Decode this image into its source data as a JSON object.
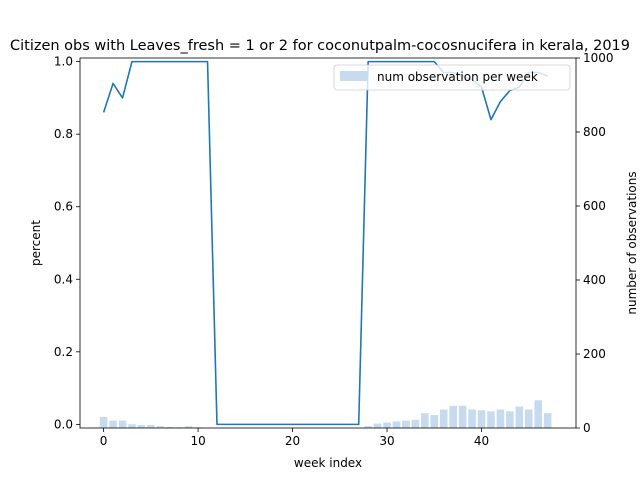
{
  "chart_data": {
    "type": "bar+line",
    "title": "Citizen obs with Leaves_fresh = 1 or 2 for coconutpalm-cocosnucifera in kerala, 2019",
    "xlabel": "week index",
    "ylabel": "percent",
    "y2label": "number of observations",
    "xlim": [
      -2.5,
      50
    ],
    "ylim": [
      -0.01,
      1.01
    ],
    "y2lim": [
      0,
      1000
    ],
    "x_ticks": [
      0,
      10,
      20,
      30,
      40
    ],
    "y_ticks": [
      0.0,
      0.2,
      0.4,
      0.6,
      0.8,
      1.0
    ],
    "y2_ticks": [
      0,
      200,
      400,
      600,
      800,
      1000
    ],
    "legend": {
      "label": "num observation per week",
      "placement": "top-right"
    },
    "bars": {
      "name": "num observation per week",
      "x": [
        0,
        1,
        2,
        3,
        4,
        5,
        6,
        7,
        8,
        9,
        10,
        11,
        12,
        13,
        14,
        15,
        16,
        17,
        18,
        19,
        20,
        21,
        22,
        23,
        24,
        25,
        26,
        27,
        28,
        29,
        30,
        31,
        32,
        33,
        34,
        35,
        36,
        37,
        38,
        39,
        40,
        41,
        42,
        43,
        44,
        45,
        46,
        47
      ],
      "values": [
        30,
        20,
        20,
        10,
        8,
        8,
        5,
        3,
        2,
        5,
        2,
        0,
        0,
        0,
        0,
        0,
        0,
        0,
        0,
        0,
        0,
        0,
        0,
        0,
        0,
        0,
        0,
        0,
        5,
        12,
        15,
        18,
        20,
        22,
        40,
        35,
        50,
        60,
        60,
        50,
        48,
        45,
        50,
        45,
        58,
        50,
        75,
        40
      ],
      "color": "#c6dbef"
    },
    "line": {
      "name": "percent",
      "x": [
        0,
        1,
        2,
        3,
        4,
        5,
        6,
        7,
        8,
        9,
        10,
        11,
        12,
        13,
        14,
        15,
        16,
        17,
        18,
        19,
        20,
        21,
        22,
        23,
        24,
        25,
        26,
        27,
        28,
        29,
        30,
        31,
        32,
        33,
        34,
        35,
        36,
        37,
        38,
        39,
        40,
        41,
        42,
        43,
        44,
        45,
        46,
        47
      ],
      "values": [
        0.86,
        0.94,
        0.9,
        1.0,
        1.0,
        1.0,
        1.0,
        1.0,
        1.0,
        1.0,
        1.0,
        1.0,
        0.0,
        0.0,
        0.0,
        0.0,
        0.0,
        0.0,
        0.0,
        0.0,
        0.0,
        0.0,
        0.0,
        0.0,
        0.0,
        0.0,
        0.0,
        0.0,
        1.0,
        1.0,
        1.0,
        1.0,
        1.0,
        1.0,
        1.0,
        1.0,
        0.97,
        0.97,
        0.96,
        0.95,
        0.93,
        0.84,
        0.89,
        0.92,
        0.93,
        0.97,
        0.97,
        0.96
      ],
      "color": "#1f77b4"
    }
  }
}
